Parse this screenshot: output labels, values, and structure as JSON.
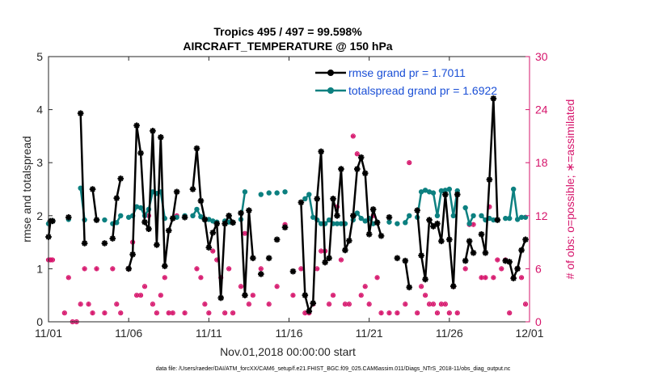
{
  "chart_data": {
    "type": "line",
    "title_line1": "Tropics 495 / 497 = 99.598%",
    "title_line2": "AIRCRAFT_TEMPERATURE @ 150 hPa",
    "xlabel": "Nov.01,2018 00:00:00 start",
    "ylabel": "rmse and totalspread",
    "y2label": "# of obs: o=possible; ∗=assimilated",
    "footnote": "data file: /Users/raeder/DAI/ATM_forcXX/CAM6_setup/f.e21.FHIST_BGC.f09_025.CAM6assim.011/Diags_NTrS_2018-11/obs_diag_output.nc",
    "xlim": [
      1,
      31
    ],
    "ylim": [
      0,
      5
    ],
    "y2lim": [
      0,
      30
    ],
    "x_ticks": [
      1,
      6,
      11,
      16,
      21,
      26,
      31
    ],
    "x_tick_labels": [
      "11/01",
      "11/06",
      "11/11",
      "11/16",
      "11/21",
      "11/26",
      "12/01"
    ],
    "y_ticks": [
      0,
      1,
      2,
      3,
      4,
      5
    ],
    "y_tick_labels": [
      "0",
      "1",
      "2",
      "3",
      "4",
      "5"
    ],
    "y2_ticks": [
      0,
      6,
      12,
      18,
      24,
      30
    ],
    "y2_tick_labels": [
      "0",
      "6",
      "12",
      "18",
      "24",
      "30"
    ],
    "colors": {
      "rmse": "#000000",
      "spread": "#0c8080",
      "obs": "#d6146b",
      "legend_text": "#1a4fd6",
      "axis": "#262626"
    },
    "legend": [
      {
        "name": "rmse grand pr = 1.7011"
      },
      {
        "name": "totalspread grand pr = 1.6922"
      }
    ],
    "series": [
      {
        "name": "rmse",
        "x": [
          1.0,
          1.125,
          1.25,
          2.25,
          3.0,
          3.25,
          3.75,
          4.0,
          4.5,
          5.0,
          5.25,
          5.5,
          6.0,
          6.25,
          6.5,
          6.75,
          7.0,
          7.25,
          7.5,
          7.75,
          8.0,
          8.25,
          8.5,
          8.75,
          9.0,
          9.5,
          10.0,
          10.25,
          10.5,
          10.75,
          11.0,
          11.25,
          11.5,
          11.75,
          12.0,
          12.25,
          12.5,
          13.0,
          13.25,
          13.5,
          13.75,
          14.25,
          14.75,
          15.25,
          15.75,
          16.25,
          16.75,
          17.0,
          17.25,
          17.5,
          17.75,
          18.0,
          18.25,
          18.5,
          18.75,
          19.0,
          19.25,
          19.5,
          19.75,
          20.0,
          20.25,
          20.5,
          20.75,
          21.0,
          21.25,
          21.5,
          21.75,
          22.25,
          22.75,
          23.25,
          23.5,
          24.0,
          24.25,
          24.5,
          24.75,
          25.0,
          25.25,
          25.5,
          25.75,
          26.0,
          26.25,
          26.5,
          27.0,
          27.25,
          27.5,
          28.0,
          28.25,
          28.5,
          28.75,
          29.0,
          29.5,
          29.75,
          30.0,
          30.25,
          30.5,
          30.75
        ],
        "y": [
          1.6,
          1.9,
          1.9,
          1.97,
          3.93,
          1.48,
          2.5,
          1.92,
          1.48,
          1.57,
          2.33,
          2.7,
          1.0,
          1.27,
          3.7,
          3.18,
          1.88,
          1.75,
          3.6,
          1.45,
          3.48,
          1.05,
          1.72,
          1.95,
          2.45,
          1.97,
          2.5,
          3.27,
          2.28,
          1.93,
          1.4,
          1.68,
          1.85,
          0.45,
          1.85,
          2.0,
          1.87,
          2.05,
          0.5,
          2.1,
          1.2,
          0.9,
          1.2,
          1.55,
          1.78,
          0.95,
          2.25,
          0.5,
          0.2,
          0.35,
          2.32,
          3.21,
          1.12,
          1.2,
          2.32,
          2.0,
          2.88,
          1.35,
          1.53,
          2.0,
          2.88,
          3.1,
          2.8,
          1.65,
          2.12,
          1.87,
          1.62,
          1.97,
          1.2,
          1.15,
          0.65,
          2.1,
          1.25,
          0.8,
          1.92,
          1.8,
          1.85,
          1.52,
          2.4,
          1.55,
          0.67,
          2.4,
          1.15,
          1.52,
          1.3,
          1.65,
          1.3,
          2.68,
          4.21,
          1.92,
          1.15,
          1.13,
          0.82,
          1.0,
          1.35,
          1.55
        ]
      },
      {
        "name": "totalspread",
        "x": [
          1.0,
          1.125,
          1.25,
          2.25,
          3.0,
          3.25,
          4.0,
          4.5,
          5.0,
          5.25,
          5.5,
          6.0,
          6.25,
          6.5,
          6.75,
          7.0,
          7.25,
          7.5,
          7.75,
          8.0,
          8.25,
          9.0,
          9.5,
          10.0,
          10.25,
          10.5,
          10.75,
          11.0,
          11.25,
          11.5,
          12.0,
          12.25,
          12.5,
          13.0,
          13.25,
          14.25,
          14.75,
          15.25,
          15.75,
          17.0,
          17.25,
          17.5,
          17.75,
          18.0,
          18.25,
          18.5,
          18.75,
          19.0,
          19.25,
          19.5,
          20.0,
          20.25,
          20.5,
          20.75,
          21.0,
          21.25,
          21.5,
          22.25,
          22.75,
          23.25,
          23.5,
          24.0,
          24.25,
          24.5,
          24.75,
          25.0,
          25.25,
          25.5,
          25.75,
          26.0,
          26.25,
          26.5,
          27.0,
          27.25,
          27.5,
          28.0,
          28.25,
          28.5,
          28.75,
          29.0,
          29.5,
          29.75,
          30.0,
          30.25,
          30.5,
          30.75
        ],
        "y": [
          1.85,
          1.9,
          1.9,
          1.93,
          2.52,
          1.92,
          1.92,
          1.92,
          1.85,
          1.87,
          2.0,
          1.97,
          2.0,
          2.17,
          2.15,
          2.0,
          2.12,
          2.45,
          2.42,
          2.45,
          1.95,
          1.97,
          2.0,
          2.0,
          2.12,
          1.98,
          1.92,
          1.93,
          1.9,
          1.88,
          1.9,
          1.88,
          1.87,
          1.93,
          2.45,
          2.4,
          2.43,
          2.43,
          2.45,
          2.32,
          2.4,
          1.97,
          1.92,
          1.85,
          1.85,
          1.92,
          1.85,
          1.85,
          1.85,
          1.85,
          1.92,
          2.05,
          1.95,
          1.9,
          1.95,
          1.85,
          1.88,
          1.88,
          1.85,
          1.87,
          2.0,
          1.97,
          2.45,
          2.48,
          2.45,
          2.43,
          2.0,
          2.47,
          2.48,
          2.5,
          2.0,
          2.47,
          2.15,
          1.85,
          2.0,
          2.0,
          1.92,
          1.95,
          1.92,
          1.92,
          1.95,
          1.95,
          2.5,
          1.93,
          1.97,
          1.97
        ]
      },
      {
        "name": "obs_count",
        "axis": "right",
        "x": [
          1.0,
          1.125,
          1.25,
          2.0,
          2.25,
          2.5,
          2.75,
          3.0,
          3.25,
          3.5,
          3.75,
          4.0,
          4.5,
          5.0,
          5.25,
          5.5,
          6.0,
          6.25,
          6.5,
          6.75,
          7.0,
          7.25,
          7.5,
          7.75,
          8.0,
          8.25,
          8.5,
          8.75,
          9.0,
          9.5,
          10.0,
          10.25,
          10.5,
          10.75,
          11.0,
          11.25,
          11.5,
          11.75,
          12.0,
          12.25,
          12.5,
          13.0,
          13.25,
          13.5,
          13.75,
          14.25,
          14.75,
          15.25,
          15.75,
          16.25,
          16.75,
          17.0,
          17.25,
          17.5,
          17.75,
          18.0,
          18.25,
          18.5,
          18.75,
          19.0,
          19.25,
          19.5,
          19.75,
          20.0,
          20.25,
          20.5,
          20.75,
          21.0,
          21.25,
          21.5,
          21.75,
          22.25,
          22.75,
          23.25,
          23.5,
          24.0,
          24.25,
          24.5,
          24.75,
          25.0,
          25.25,
          25.5,
          25.75,
          26.0,
          26.25,
          26.5,
          27.0,
          27.25,
          27.5,
          28.0,
          28.25,
          28.5,
          28.75,
          29.0,
          29.25,
          29.5,
          29.75,
          30.0,
          30.25,
          30.5,
          30.75
        ],
        "y": [
          7,
          7,
          7,
          1,
          5,
          0,
          0,
          2,
          6,
          2,
          1,
          6,
          1,
          6,
          2,
          1,
          6,
          9,
          3,
          3,
          4,
          12,
          2,
          1,
          3,
          5,
          1,
          1,
          12,
          1,
          12,
          6,
          5,
          2,
          1,
          8,
          7,
          5,
          1,
          6,
          1,
          4,
          10,
          2,
          3,
          6,
          2,
          4,
          11,
          3,
          6,
          1,
          1,
          2,
          6,
          8,
          8,
          2,
          3,
          13,
          7,
          2,
          2,
          21,
          19,
          3,
          4,
          2,
          12,
          5,
          1,
          1,
          1,
          2,
          18,
          1,
          4,
          3,
          2,
          2,
          1,
          2,
          2,
          1,
          4,
          1,
          6,
          11,
          11,
          5,
          5,
          13,
          5,
          7,
          6,
          7,
          1,
          5,
          6,
          5,
          2
        ]
      }
    ]
  }
}
